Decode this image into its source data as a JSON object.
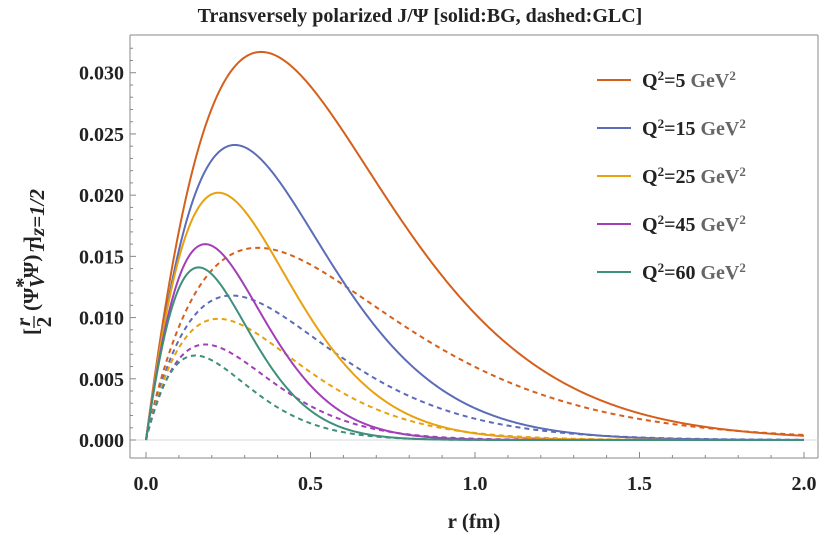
{
  "chart_data": {
    "type": "line",
    "title": "Transversely polarized J/Ψ [solid:BG, dashed:GLC]",
    "xlabel": "r (fm)",
    "ylabel": "[r/2 (Ψ*V Ψ)T]z=1/2",
    "ylabel_parts": {
      "bracket_open": "[",
      "frac_num": "r",
      "frac_den": "2",
      "psi_open": "(Ψ",
      "star": "*",
      "v_sub": "V",
      "psi_close": "Ψ)",
      "t_sub": "T",
      "bracket_close": "]",
      "z_sub": "z=1/2"
    },
    "xlim": [
      0.0,
      2.0
    ],
    "ylim": [
      0.0,
      0.033
    ],
    "xticks": [
      {
        "value": 0.0,
        "label": "0.0"
      },
      {
        "value": 0.5,
        "label": "0.5"
      },
      {
        "value": 1.0,
        "label": "1.0"
      },
      {
        "value": 1.5,
        "label": "1.5"
      },
      {
        "value": 2.0,
        "label": "2.0"
      }
    ],
    "yticks": [
      {
        "value": 0.0,
        "label": "0.000"
      },
      {
        "value": 0.005,
        "label": "0.005"
      },
      {
        "value": 0.01,
        "label": "0.010"
      },
      {
        "value": 0.015,
        "label": "0.015"
      },
      {
        "value": 0.02,
        "label": "0.020"
      },
      {
        "value": 0.025,
        "label": "0.025"
      },
      {
        "value": 0.03,
        "label": "0.030"
      }
    ],
    "legend_position": "top-right",
    "series": [
      {
        "name": "Q²=5 GeV²",
        "q_label": "Q",
        "q_sup": "2",
        "q_value": "=5",
        "unit": "GeV",
        "unit_sup": "2",
        "color": "#d4601c",
        "solid": {
          "peak_r": 0.35,
          "peak": 0.0317,
          "p": 1.0,
          "q": 1.25
        },
        "dashed": {
          "peak_r": 0.34,
          "peak": 0.0157,
          "p": 0.95,
          "q": 1.12
        }
      },
      {
        "name": "Q²=15 GeV²",
        "q_label": "Q",
        "q_sup": "2",
        "q_value": "=15",
        "unit": "GeV",
        "unit_sup": "2",
        "color": "#5b6cb8",
        "solid": {
          "peak_r": 0.27,
          "peak": 0.0241,
          "p": 1.0,
          "q": 1.33
        },
        "dashed": {
          "peak_r": 0.26,
          "peak": 0.0118,
          "p": 0.95,
          "q": 1.2
        }
      },
      {
        "name": "Q²=25 GeV²",
        "q_label": "Q",
        "q_sup": "2",
        "q_value": "=25",
        "unit": "GeV",
        "unit_sup": "2",
        "color": "#e8a10f",
        "solid": {
          "peak_r": 0.22,
          "peak": 0.0202,
          "p": 1.0,
          "q": 1.38
        },
        "dashed": {
          "peak_r": 0.22,
          "peak": 0.0099,
          "p": 0.95,
          "q": 1.25
        }
      },
      {
        "name": "Q²=45 GeV²",
        "q_label": "Q",
        "q_sup": "2",
        "q_value": "=45",
        "unit": "GeV",
        "unit_sup": "2",
        "color": "#a13fb8",
        "solid": {
          "peak_r": 0.18,
          "peak": 0.016,
          "p": 1.0,
          "q": 1.42
        },
        "dashed": {
          "peak_r": 0.18,
          "peak": 0.0078,
          "p": 0.95,
          "q": 1.28
        }
      },
      {
        "name": "Q²=60 GeV²",
        "q_label": "Q",
        "q_sup": "2",
        "q_value": "=60",
        "unit": "GeV",
        "unit_sup": "2",
        "color": "#3e8f7b",
        "solid": {
          "peak_r": 0.16,
          "peak": 0.0141,
          "p": 1.0,
          "q": 1.45
        },
        "dashed": {
          "peak_r": 0.15,
          "peak": 0.0069,
          "p": 0.95,
          "q": 1.3
        }
      }
    ]
  }
}
